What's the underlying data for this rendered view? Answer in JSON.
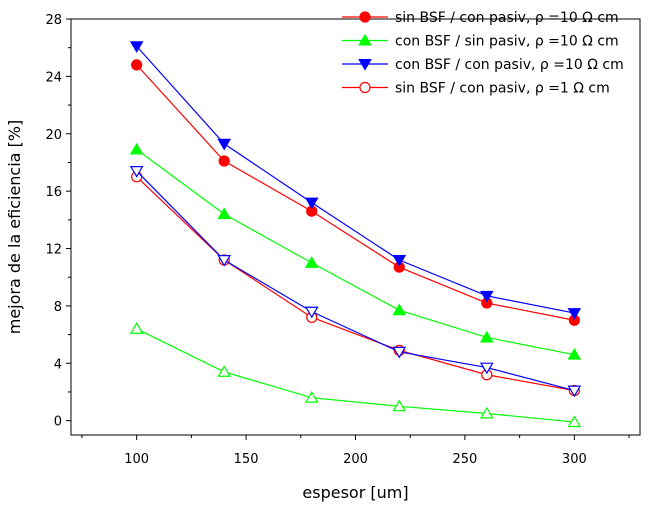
{
  "chart_data": {
    "type": "line",
    "xlabel": "espesor [um]",
    "ylabel": "mejora de la eficiencia [%]",
    "xlim": [
      70,
      330
    ],
    "ylim": [
      -1,
      28
    ],
    "xticks": [
      100,
      150,
      200,
      250,
      300
    ],
    "yticks": [
      0,
      4,
      8,
      12,
      16,
      20,
      24,
      28
    ],
    "grid": false,
    "legend_position": "top-right",
    "x": [
      100,
      140,
      180,
      220,
      260,
      300
    ],
    "series": [
      {
        "name": "sin BSF / con pasiv, ρ =10 Ω cm",
        "color": "#ff0000",
        "marker": "circle",
        "filled": true,
        "values": [
          24.8,
          18.1,
          14.6,
          10.7,
          8.2,
          7.0
        ]
      },
      {
        "name": "con BSF / sin pasiv, ρ =10 Ω cm",
        "color": "#00ff00",
        "marker": "triangle-up",
        "filled": true,
        "values": [
          18.9,
          14.4,
          11.0,
          7.7,
          5.8,
          4.6
        ]
      },
      {
        "name": "con BSF / con pasiv, ρ =10 Ω cm",
        "color": "#0000ff",
        "marker": "triangle-down",
        "filled": true,
        "values": [
          26.1,
          19.3,
          15.2,
          11.2,
          8.7,
          7.5
        ]
      },
      {
        "name": "sin BSF / con pasiv, ρ =1 Ω cm",
        "color": "#ff0000",
        "marker": "circle",
        "filled": false,
        "values": [
          17.0,
          11.2,
          7.2,
          4.9,
          3.2,
          2.1
        ]
      },
      {
        "name": "",
        "color": "#00ff00",
        "marker": "triangle-up",
        "filled": false,
        "values": [
          6.4,
          3.4,
          1.6,
          1.0,
          0.5,
          -0.1
        ]
      },
      {
        "name": "",
        "color": "#0000ff",
        "marker": "triangle-down",
        "filled": false,
        "values": [
          17.4,
          11.2,
          7.6,
          4.8,
          3.7,
          2.1
        ]
      }
    ]
  }
}
